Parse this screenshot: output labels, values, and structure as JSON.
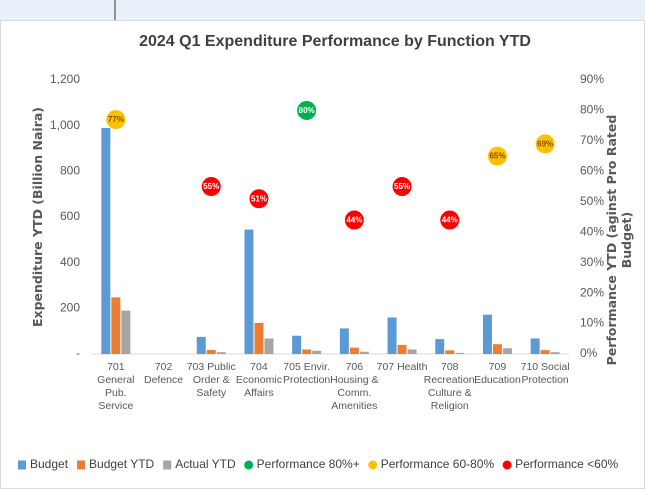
{
  "chart_data": {
    "type": "bar",
    "title": "2024 Q1 Expenditure Performance by Function YTD",
    "ylabel": "Expenditure YTD (Billion Naira)",
    "y2label": "Performance YTD (aginst Pro Rated Budget)",
    "categories": [
      "701 General Pub. Service",
      "702 Defence",
      "703 Public Order & Safety",
      "704 Economic Affairs",
      "705 Envir. Protection",
      "706 Housing & Comm. Amenities",
      "707 Health",
      "708 Recreation, Culture & Religion",
      "709 Education",
      "710 Social Protection"
    ],
    "series": [
      {
        "name": "Budget",
        "color": "#5b9bd5",
        "values": [
          990,
          0,
          75,
          545,
          80,
          112,
          160,
          65,
          172,
          68
        ]
      },
      {
        "name": "Budget YTD",
        "color": "#ed7d31",
        "values": [
          248,
          0,
          18,
          136,
          20,
          28,
          40,
          16,
          43,
          17
        ]
      },
      {
        "name": "Actual YTD",
        "color": "#a5a5a5",
        "values": [
          190,
          0,
          8,
          68,
          14,
          10,
          20,
          5,
          25,
          8
        ]
      },
      {
        "name": "Performance 80%+",
        "color": "#00b050",
        "axis": "y2",
        "values": [
          null,
          null,
          null,
          null,
          80,
          null,
          null,
          null,
          null,
          null
        ],
        "value_labels": [
          null,
          null,
          null,
          null,
          "80%",
          null,
          null,
          null,
          null,
          null
        ]
      },
      {
        "name": "Performance 60-80%",
        "color": "#ffc000",
        "axis": "y2",
        "values": [
          77,
          null,
          null,
          null,
          null,
          null,
          null,
          null,
          65,
          69
        ],
        "value_labels": [
          "77%",
          null,
          null,
          null,
          null,
          null,
          null,
          null,
          "65%",
          "69%"
        ]
      },
      {
        "name": "Performance <60%",
        "color": "#ff0000",
        "axis": "y2",
        "values": [
          null,
          null,
          55,
          51,
          null,
          44,
          55,
          44,
          null,
          null
        ],
        "value_labels": [
          null,
          null,
          "55%",
          "51%",
          null,
          "44%",
          "55%",
          "44%",
          null,
          null
        ]
      }
    ],
    "ylim": [
      0,
      1200
    ],
    "yticks": [
      {
        "value": 0,
        "label": "-"
      },
      200,
      400,
      600,
      800,
      {
        "value": 1000,
        "label": "1,000"
      },
      {
        "value": 1200,
        "label": "1,200"
      }
    ],
    "y2lim": [
      0,
      90
    ],
    "y2ticks": [
      {
        "value": 0,
        "label": "0%"
      },
      {
        "value": 10,
        "label": "10%"
      },
      {
        "value": 20,
        "label": "20%"
      },
      {
        "value": 30,
        "label": "30%"
      },
      {
        "value": 40,
        "label": "40%"
      },
      {
        "value": 50,
        "label": "50%"
      },
      {
        "value": 60,
        "label": "60%"
      },
      {
        "value": 70,
        "label": "70%"
      },
      {
        "value": 80,
        "label": "80%"
      },
      {
        "value": 90,
        "label": "90%"
      }
    ],
    "grid": false,
    "legend": "bottom"
  }
}
